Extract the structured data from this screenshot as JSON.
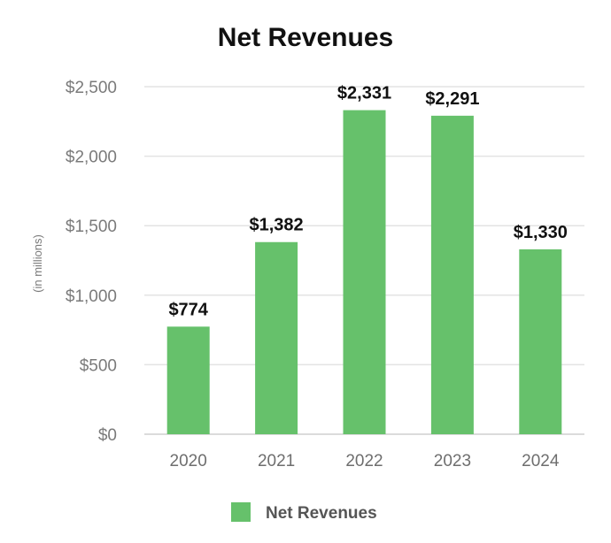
{
  "chart_data": {
    "type": "bar",
    "title": "Net Revenues",
    "xlabel": "",
    "ylabel": "(in millions)",
    "categories": [
      "2020",
      "2021",
      "2022",
      "2023",
      "2024"
    ],
    "series": [
      {
        "name": "Net Revenues",
        "values": [
          774,
          1382,
          2331,
          2291,
          1330
        ],
        "labels": [
          "$774",
          "$1,382",
          "$2,331",
          "$2,291",
          "$1,330"
        ],
        "color": "#66c16b"
      }
    ],
    "ylim": [
      0,
      2500
    ],
    "yticks": [
      0,
      500,
      1000,
      1500,
      2000,
      2500
    ],
    "ytick_labels": [
      "$0",
      "$500",
      "$1,000",
      "$1,500",
      "$2,000",
      "$2,500"
    ],
    "grid": true,
    "legend": {
      "position": "bottom-center",
      "label": "Net Revenues"
    }
  }
}
